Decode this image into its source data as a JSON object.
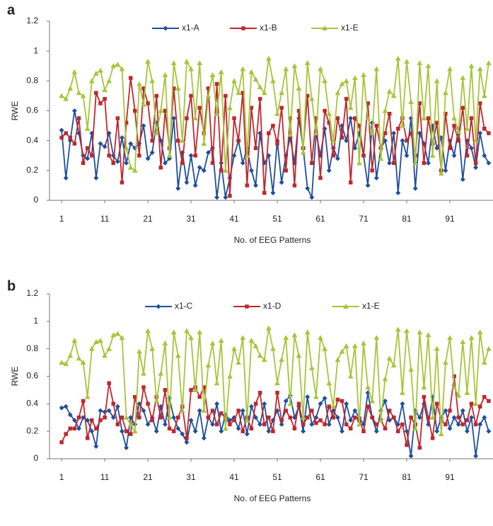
{
  "chart_data": [
    {
      "type": "line",
      "panel_label": "a",
      "ylabel": "RWE",
      "xlabel": "No. of EEG Patterns",
      "legend": "top",
      "x": [
        1,
        2,
        3,
        4,
        5,
        6,
        7,
        8,
        9,
        10,
        11,
        12,
        13,
        14,
        15,
        16,
        17,
        18,
        19,
        20,
        21,
        22,
        23,
        24,
        25,
        26,
        27,
        28,
        29,
        30,
        31,
        32,
        33,
        34,
        35,
        36,
        37,
        38,
        39,
        40,
        41,
        42,
        43,
        44,
        45,
        46,
        47,
        48,
        49,
        50,
        51,
        52,
        53,
        54,
        55,
        56,
        57,
        58,
        59,
        60,
        61,
        62,
        63,
        64,
        65,
        66,
        67,
        68,
        69,
        70,
        71,
        72,
        73,
        74,
        75,
        76,
        77,
        78,
        79,
        80,
        81,
        82,
        83,
        84,
        85,
        86,
        87,
        88,
        89,
        90,
        91,
        92,
        93,
        94,
        95,
        96,
        97,
        98,
        99,
        100
      ],
      "xlim": [
        -1.8,
        101
      ],
      "xticks": [
        1,
        11,
        21,
        31,
        41,
        51,
        61,
        71,
        81,
        91
      ],
      "ylim": [
        0,
        1.2
      ],
      "yticks": [
        0,
        0.2,
        0.4,
        0.6,
        0.8,
        1,
        1.2
      ],
      "series": [
        {
          "name": "x1-A",
          "color": "#1f4e9c",
          "marker": "diamond",
          "values": [
            0.47,
            0.15,
            0.4,
            0.6,
            0.45,
            0.3,
            0.28,
            0.45,
            0.15,
            0.38,
            0.36,
            0.45,
            0.3,
            0.26,
            0.42,
            0.25,
            0.38,
            0.35,
            0.38,
            0.5,
            0.28,
            0.32,
            0.52,
            0.4,
            0.25,
            0.28,
            0.55,
            0.08,
            0.32,
            0.12,
            0.3,
            0.1,
            0.22,
            0.2,
            0.32,
            0.35,
            0.02,
            0.25,
            0.02,
            0.15,
            0.3,
            0.4,
            0.25,
            0.35,
            0.2,
            0.1,
            0.45,
            0.25,
            0.3,
            0.05,
            0.4,
            0.12,
            0.3,
            0.42,
            0.25,
            0.55,
            0.35,
            0.08,
            0.02,
            0.45,
            0.3,
            0.48,
            0.2,
            0.35,
            0.28,
            0.5,
            0.4,
            0.55,
            0.35,
            0.45,
            0.3,
            0.1,
            0.52,
            0.15,
            0.35,
            0.4,
            0.25,
            0.45,
            0.05,
            0.4,
            0.3,
            0.55,
            0.08,
            0.45,
            0.38,
            0.25,
            0.5,
            0.35,
            0.42,
            0.2,
            0.4,
            0.3,
            0.48,
            0.14,
            0.4,
            0.35,
            0.22,
            0.45,
            0.3,
            0.25
          ]
        },
        {
          "name": "x1-B",
          "color": "#c0272d",
          "marker": "square",
          "values": [
            0.42,
            0.45,
            0.42,
            0.38,
            0.55,
            0.25,
            0.35,
            0.3,
            0.72,
            0.65,
            0.68,
            0.3,
            0.25,
            0.55,
            0.12,
            0.52,
            0.82,
            0.6,
            0.3,
            0.75,
            0.65,
            0.4,
            0.7,
            0.22,
            0.6,
            0.35,
            0.75,
            0.4,
            0.25,
            0.55,
            0.7,
            0.3,
            0.62,
            0.45,
            0.75,
            0.25,
            0.78,
            0.2,
            0.7,
            0.03,
            0.55,
            0.4,
            0.72,
            0.1,
            0.62,
            0.35,
            0.68,
            0.05,
            0.45,
            0.5,
            0.38,
            0.62,
            0.2,
            0.55,
            0.1,
            0.6,
            0.35,
            0.7,
            0.25,
            0.55,
            0.15,
            0.6,
            0.52,
            0.3,
            0.55,
            0.42,
            0.68,
            0.12,
            0.55,
            0.5,
            0.3,
            0.65,
            0.2,
            0.5,
            0.35,
            0.45,
            0.58,
            0.25,
            0.48,
            0.55,
            0.4,
            0.45,
            0.3,
            0.65,
            0.25,
            0.55,
            0.38,
            0.52,
            0.2,
            0.58,
            0.35,
            0.5,
            0.4,
            0.62,
            0.3,
            0.55,
            0.25,
            0.65,
            0.48,
            0.45
          ]
        },
        {
          "name": "x1-E",
          "color": "#a4c639",
          "marker": "triangle",
          "values": [
            0.7,
            0.68,
            0.75,
            0.86,
            0.72,
            0.7,
            0.48,
            0.8,
            0.85,
            0.87,
            0.74,
            0.8,
            0.9,
            0.91,
            0.88,
            0.35,
            0.22,
            0.2,
            0.78,
            0.64,
            0.93,
            0.8,
            0.45,
            0.6,
            0.84,
            0.3,
            0.92,
            0.75,
            0.4,
            0.93,
            0.88,
            0.55,
            0.92,
            0.38,
            0.7,
            0.84,
            0.58,
            0.86,
            0.2,
            0.62,
            0.8,
            0.72,
            0.88,
            0.3,
            0.86,
            0.81,
            0.76,
            0.72,
            0.95,
            0.8,
            0.58,
            0.72,
            0.88,
            0.44,
            0.9,
            0.75,
            0.32,
            0.92,
            0.68,
            0.45,
            0.88,
            0.8,
            0.58,
            0.4,
            0.72,
            0.78,
            0.8,
            0.62,
            0.82,
            0.25,
            0.84,
            0.55,
            0.45,
            0.88,
            0.28,
            0.6,
            0.73,
            0.7,
            0.95,
            0.5,
            0.93,
            0.66,
            0.25,
            0.92,
            0.55,
            0.9,
            0.3,
            0.8,
            0.18,
            0.72,
            0.88,
            0.55,
            0.46,
            0.82,
            0.48,
            0.9,
            0.4,
            0.88,
            0.7,
            0.92
          ]
        }
      ]
    },
    {
      "type": "line",
      "panel_label": "b",
      "ylabel": "RWE",
      "xlabel": "No. of EEG Patterns",
      "legend": "top",
      "x": [
        1,
        2,
        3,
        4,
        5,
        6,
        7,
        8,
        9,
        10,
        11,
        12,
        13,
        14,
        15,
        16,
        17,
        18,
        19,
        20,
        21,
        22,
        23,
        24,
        25,
        26,
        27,
        28,
        29,
        30,
        31,
        32,
        33,
        34,
        35,
        36,
        37,
        38,
        39,
        40,
        41,
        42,
        43,
        44,
        45,
        46,
        47,
        48,
        49,
        50,
        51,
        52,
        53,
        54,
        55,
        56,
        57,
        58,
        59,
        60,
        61,
        62,
        63,
        64,
        65,
        66,
        67,
        68,
        69,
        70,
        71,
        72,
        73,
        74,
        75,
        76,
        77,
        78,
        79,
        80,
        81,
        82,
        83,
        84,
        85,
        86,
        87,
        88,
        89,
        90,
        91,
        92,
        93,
        94,
        95,
        96,
        97,
        98,
        99,
        100
      ],
      "xlim": [
        -1.8,
        101
      ],
      "xticks": [
        1,
        11,
        21,
        31,
        41,
        51,
        61,
        71,
        81,
        91
      ],
      "ylim": [
        0,
        1.2
      ],
      "yticks": [
        0,
        0.2,
        0.4,
        0.6,
        0.8,
        1,
        1.2
      ],
      "series": [
        {
          "name": "x1-C",
          "color": "#1f4e9c",
          "marker": "diamond",
          "values": [
            0.37,
            0.38,
            0.32,
            0.28,
            0.22,
            0.3,
            0.28,
            0.2,
            0.09,
            0.35,
            0.34,
            0.35,
            0.3,
            0.38,
            0.2,
            0.08,
            0.3,
            0.25,
            0.4,
            0.35,
            0.25,
            0.3,
            0.2,
            0.38,
            0.25,
            0.44,
            0.3,
            0.22,
            0.18,
            0.12,
            0.28,
            0.2,
            0.35,
            0.15,
            0.3,
            0.25,
            0.4,
            0.2,
            0.32,
            0.28,
            0.3,
            0.22,
            0.35,
            0.18,
            0.38,
            0.3,
            0.25,
            0.4,
            0.2,
            0.28,
            0.35,
            0.25,
            0.42,
            0.46,
            0.3,
            0.38,
            0.2,
            0.45,
            0.25,
            0.3,
            0.4,
            0.44,
            0.25,
            0.35,
            0.3,
            0.2,
            0.4,
            0.28,
            0.35,
            0.3,
            0.25,
            0.48,
            0.3,
            0.2,
            0.35,
            0.42,
            0.28,
            0.3,
            0.25,
            0.4,
            0.2,
            0.02,
            0.35,
            0.3,
            0.4,
            0.25,
            0.45,
            0.2,
            0.3,
            0.35,
            0.22,
            0.3,
            0.25,
            0.35,
            0.2,
            0.3,
            0.02,
            0.25,
            0.3,
            0.2
          ]
        },
        {
          "name": "x1-D",
          "color": "#c0272d",
          "marker": "square",
          "values": [
            0.12,
            0.18,
            0.22,
            0.22,
            0.3,
            0.42,
            0.15,
            0.28,
            0.22,
            0.28,
            0.3,
            0.55,
            0.4,
            0.25,
            0.3,
            0.2,
            0.18,
            0.45,
            0.3,
            0.52,
            0.4,
            0.28,
            0.45,
            0.3,
            0.5,
            0.22,
            0.2,
            0.3,
            0.38,
            0.15,
            0.5,
            0.52,
            0.45,
            0.52,
            0.3,
            0.35,
            0.25,
            0.33,
            0.3,
            0.25,
            0.28,
            0.35,
            0.2,
            0.3,
            0.22,
            0.4,
            0.48,
            0.25,
            0.3,
            0.2,
            0.48,
            0.28,
            0.35,
            0.3,
            0.22,
            0.4,
            0.25,
            0.3,
            0.35,
            0.26,
            0.28,
            0.25,
            0.38,
            0.3,
            0.43,
            0.42,
            0.25,
            0.22,
            0.3,
            0.28,
            0.2,
            0.38,
            0.3,
            0.25,
            0.28,
            0.22,
            0.35,
            0.3,
            0.2,
            0.25,
            0.1,
            0.3,
            0.25,
            0.08,
            0.45,
            0.3,
            0.15,
            0.4,
            0.28,
            0.25,
            0.35,
            0.6,
            0.3,
            0.25,
            0.28,
            0.4,
            0.25,
            0.38,
            0.45,
            0.42
          ]
        },
        {
          "name": "x1-E",
          "color": "#a4c639",
          "marker": "triangle",
          "values": [
            0.7,
            0.69,
            0.75,
            0.86,
            0.73,
            0.7,
            0.45,
            0.8,
            0.85,
            0.86,
            0.75,
            0.8,
            0.9,
            0.91,
            0.88,
            0.3,
            0.25,
            0.2,
            0.78,
            0.62,
            0.93,
            0.8,
            0.42,
            0.62,
            0.84,
            0.3,
            0.92,
            0.75,
            0.35,
            0.93,
            0.88,
            0.5,
            0.92,
            0.35,
            0.68,
            0.84,
            0.55,
            0.86,
            0.22,
            0.6,
            0.8,
            0.7,
            0.88,
            0.28,
            0.86,
            0.82,
            0.75,
            0.72,
            0.95,
            0.8,
            0.55,
            0.72,
            0.88,
            0.4,
            0.9,
            0.75,
            0.3,
            0.92,
            0.66,
            0.45,
            0.88,
            0.8,
            0.55,
            0.38,
            0.72,
            0.78,
            0.82,
            0.6,
            0.82,
            0.25,
            0.84,
            0.52,
            0.42,
            0.88,
            0.28,
            0.58,
            0.73,
            0.68,
            0.94,
            0.48,
            0.93,
            0.65,
            0.22,
            0.92,
            0.52,
            0.9,
            0.3,
            0.8,
            0.18,
            0.7,
            0.88,
            0.52,
            0.46,
            0.85,
            0.48,
            0.88,
            0.4,
            0.92,
            0.7,
            0.8
          ]
        }
      ]
    }
  ]
}
